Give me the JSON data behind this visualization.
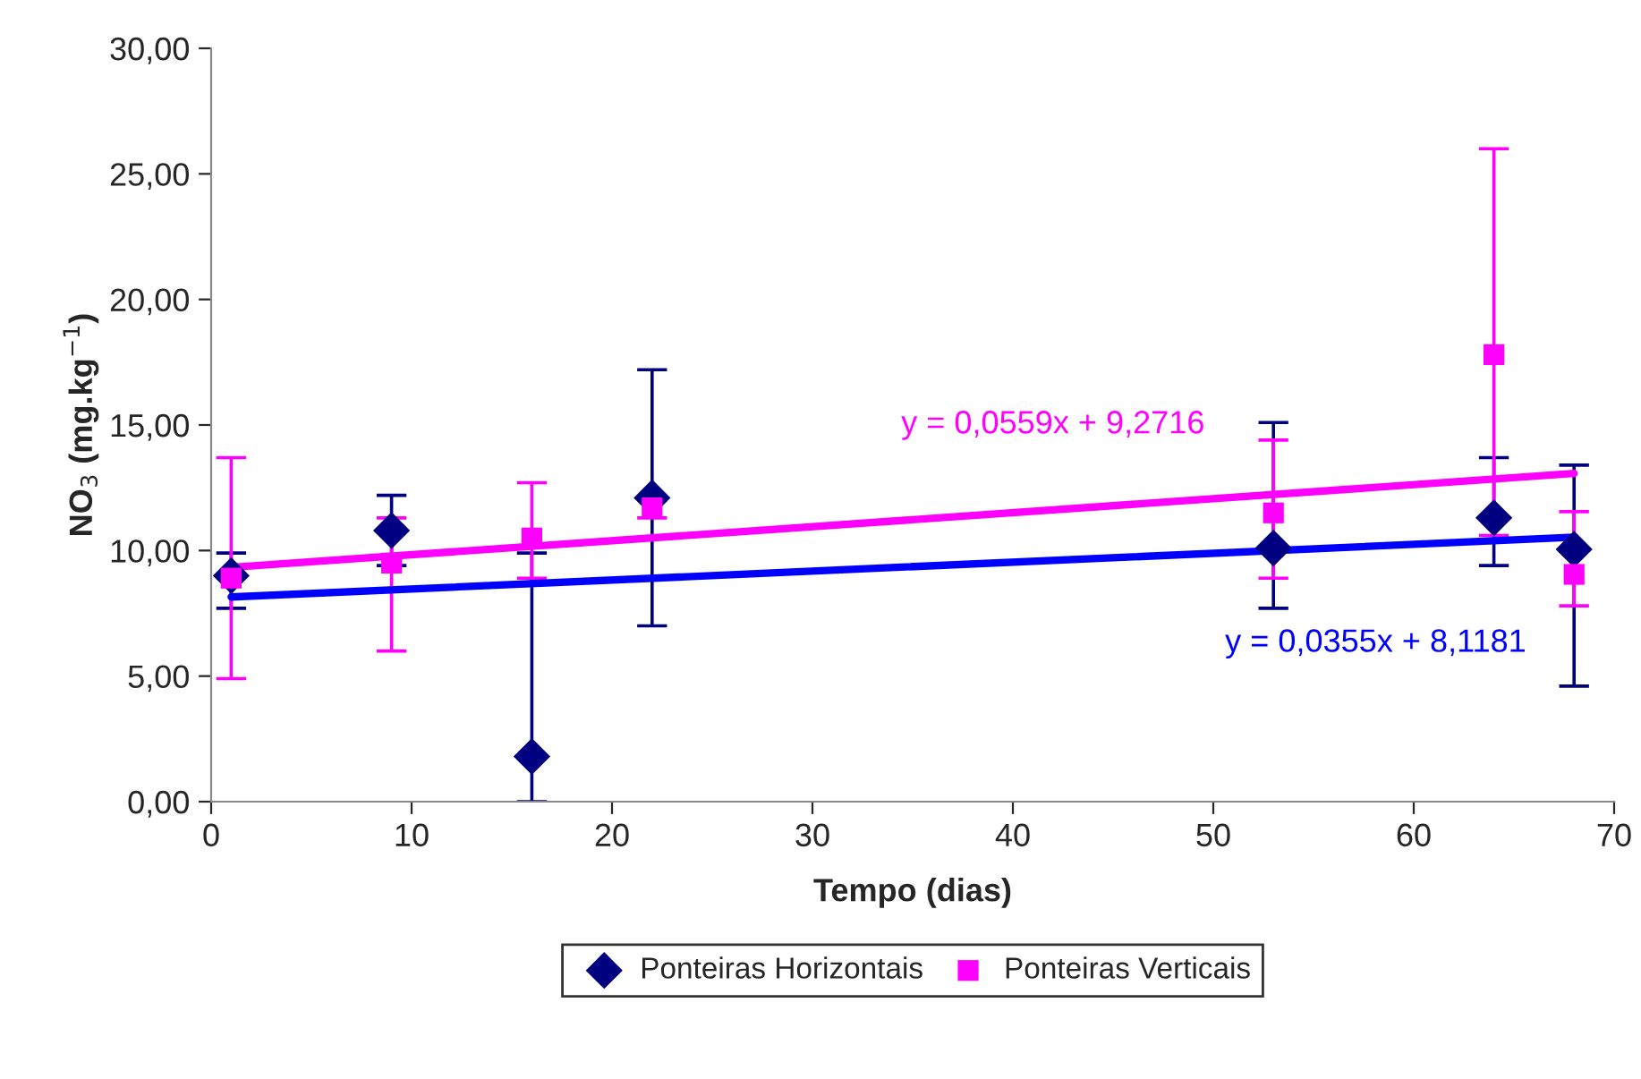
{
  "chart_data": {
    "type": "scatter",
    "xlabel": "Tempo (dias)",
    "ylabel": "NO$_{3}$ (mg.kg$^{−1}$)",
    "xlim": [
      0,
      70
    ],
    "xticks": [
      0,
      10,
      20,
      30,
      40,
      50,
      60,
      70
    ],
    "ylim": [
      0,
      30
    ],
    "yticks": [
      {
        "value": 0,
        "label": "0,00"
      },
      {
        "value": 5,
        "label": "5,00"
      },
      {
        "value": 10,
        "label": "10,00"
      },
      {
        "value": 15,
        "label": "15,00"
      },
      {
        "value": 20,
        "label": "20,00"
      },
      {
        "value": 25,
        "label": "25,00"
      },
      {
        "value": 30,
        "label": "30,00"
      }
    ],
    "grid": false,
    "legend": "bottom",
    "series": [
      {
        "name": "Ponteiras Horizontais",
        "marker": "diamond",
        "color": "#000080",
        "x": [
          1,
          9,
          16,
          22,
          53,
          64,
          68
        ],
        "values": [
          9.0,
          10.8,
          1.8,
          12.1,
          10.1,
          11.3,
          10.05
        ],
        "errors": [
          [
            7.7,
            9.9
          ],
          1.4,
          [
            0,
            9.9
          ],
          5.1,
          [
            7.7,
            15.1
          ],
          [
            9.4,
            13.7
          ],
          [
            4.6,
            13.4
          ]
        ]
      },
      {
        "name": "Ponteiras Verticais",
        "marker": "square",
        "color": "#ff00ff",
        "x": [
          1,
          9,
          16,
          22,
          53,
          64,
          68
        ],
        "values": [
          8.9,
          9.5,
          10.5,
          11.7,
          11.5,
          17.8,
          9.05
        ],
        "errors": [
          [
            4.9,
            13.7
          ],
          [
            6.0,
            11.3
          ],
          [
            8.9,
            12.7
          ],
          [
            11.3,
            12.0
          ],
          [
            8.9,
            14.4
          ],
          [
            10.6,
            26.0
          ],
          [
            7.8,
            11.55
          ]
        ]
      },
      {
        "type": "line",
        "color": "#0000ff",
        "x": [
          1,
          68
        ],
        "values": [
          8.15,
          10.53
        ]
      },
      {
        "type": "line",
        "color": "#ff00ff",
        "x": [
          1,
          68
        ],
        "values": [
          9.33,
          13.07
        ]
      }
    ],
    "annotations": [
      "y = 0,0559x + 9,2716",
      "y = 0,0355x + 8,1181"
    ]
  }
}
